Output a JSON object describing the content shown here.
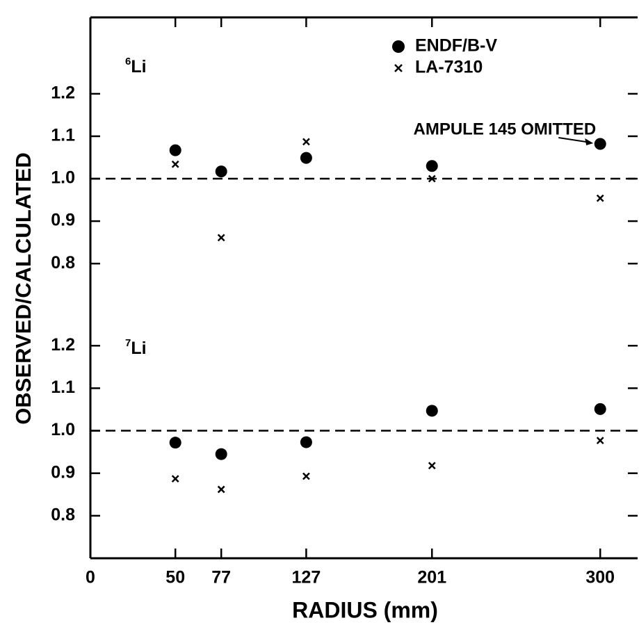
{
  "chart_data": {
    "type": "scatter",
    "xlabel": "RADIUS (mm)",
    "ylabel": "OBSERVED/CALCULATED",
    "x": [
      50,
      77,
      127,
      201,
      300
    ],
    "xlim": [
      0,
      322
    ],
    "xticks": [
      0,
      50,
      77,
      127,
      201,
      300
    ],
    "series": [
      {
        "name": "ENDF/B-V",
        "color": "#000000",
        "marker": "circle"
      },
      {
        "name": "LA-7310",
        "color": "#000000",
        "marker": "x"
      }
    ],
    "annotation": "AMPULE 145 OMITTED",
    "panels": [
      {
        "label_sup": "6",
        "label": "Li",
        "ylim": [
          0.72,
          1.38
        ],
        "yticks": [
          0.8,
          0.9,
          {
            "value": 1,
            "label": "1.0"
          },
          1.1,
          1.2
        ],
        "reference_line": 1,
        "values": [
          [
            1.067,
            1.017,
            1.049,
            1.03,
            1.082
          ],
          [
            1.034,
            0.861,
            1.087,
            1.0,
            0.954
          ]
        ]
      },
      {
        "label_sup": "7",
        "label": "Li",
        "ylim": [
          0.7,
          1.31
        ],
        "yticks": [
          0.8,
          0.9,
          {
            "value": 1,
            "label": "1.0"
          },
          1.1,
          1.2
        ],
        "reference_line": 1,
        "values": [
          [
            0.972,
            0.945,
            0.973,
            1.047,
            1.051
          ],
          [
            0.887,
            0.862,
            0.893,
            0.918,
            0.977
          ]
        ]
      }
    ]
  }
}
